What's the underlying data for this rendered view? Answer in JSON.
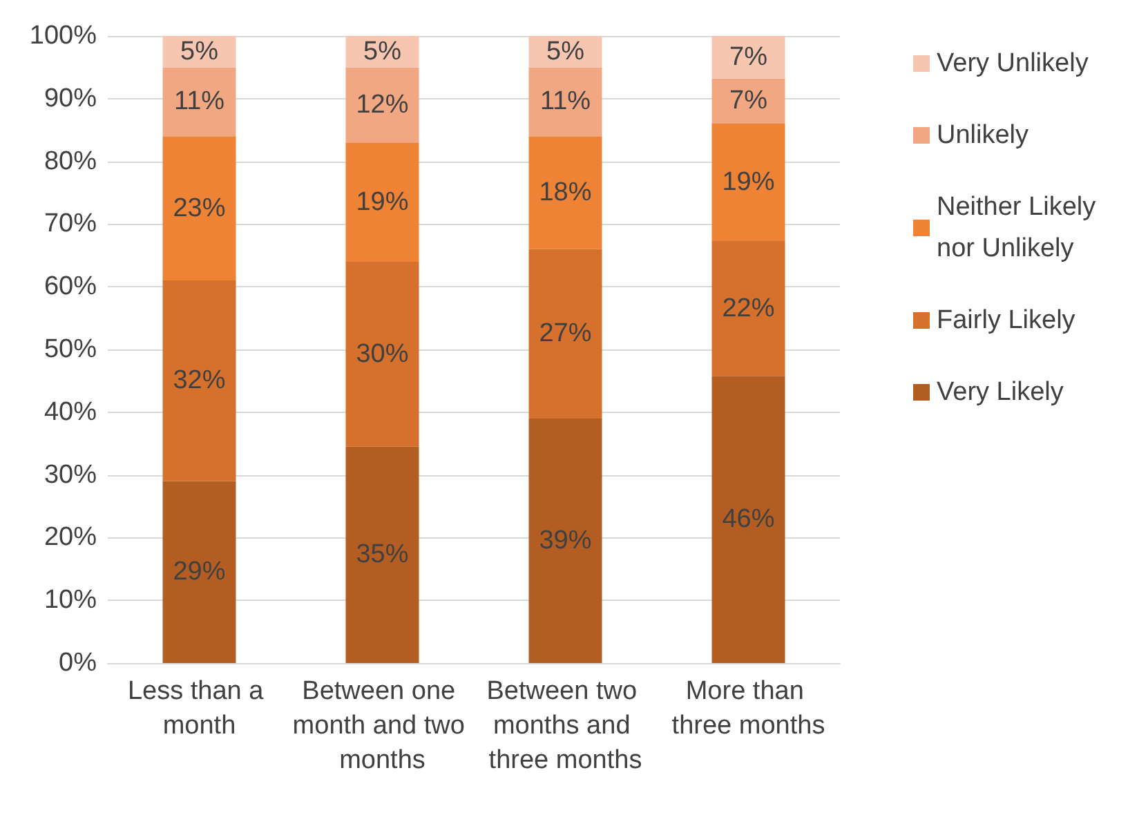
{
  "chart_data": {
    "type": "bar",
    "stacked": true,
    "categories": [
      "Less than a month",
      "Between one month and two months",
      "Between two months and three months",
      "More than three months"
    ],
    "series": [
      {
        "name": "Very Likely",
        "color": "#b45d22",
        "values": [
          29,
          34.5,
          39,
          45.8
        ],
        "value_labels": [
          "29%",
          "35%",
          "39%",
          "46%"
        ]
      },
      {
        "name": "Fairly Likely",
        "color": "#d5712d",
        "values": [
          32,
          29.5,
          27,
          21.5
        ],
        "value_labels": [
          "32%",
          "30%",
          "27%",
          "22%"
        ]
      },
      {
        "name": "Neither Likely nor Unlikely",
        "color": "#ee8336",
        "values": [
          23,
          19,
          18,
          18.7
        ],
        "value_labels": [
          "23%",
          "19%",
          "18%",
          "19%"
        ]
      },
      {
        "name": "Unlikely",
        "color": "#f2a783",
        "values": [
          11,
          12,
          11,
          7.2
        ],
        "value_labels": [
          "11%",
          "12%",
          "11%",
          "7%"
        ]
      },
      {
        "name": "Very Unlikely",
        "color": "#f6c6b1",
        "values": [
          5,
          5,
          5,
          6.8
        ],
        "value_labels": [
          "5%",
          "5%",
          "5%",
          "7%"
        ]
      }
    ],
    "ylim": [
      0,
      100
    ],
    "yticks": [
      {
        "value": 0,
        "label": "0%"
      },
      {
        "value": 10,
        "label": "10%"
      },
      {
        "value": 20,
        "label": "20%"
      },
      {
        "value": 30,
        "label": "30%"
      },
      {
        "value": 40,
        "label": "40%"
      },
      {
        "value": 50,
        "label": "50%"
      },
      {
        "value": 60,
        "label": "60%"
      },
      {
        "value": 70,
        "label": "70%"
      },
      {
        "value": 80,
        "label": "80%"
      },
      {
        "value": 90,
        "label": "90%"
      },
      {
        "value": 100,
        "label": "100%"
      }
    ],
    "grid": "y",
    "legend": "right"
  }
}
